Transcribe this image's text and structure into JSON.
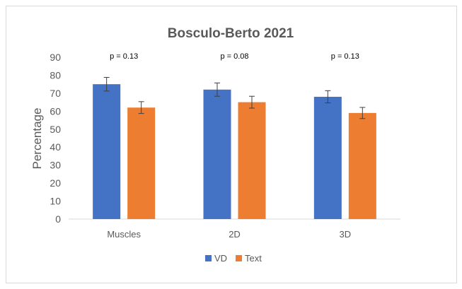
{
  "chart_data": {
    "type": "bar",
    "title": "Bosculo-Berto 2021",
    "xlabel": "",
    "ylabel": "Percentage",
    "ylim": [
      0,
      90
    ],
    "yticks": [
      0,
      10,
      20,
      30,
      40,
      50,
      60,
      70,
      80,
      90
    ],
    "categories": [
      "Muscles",
      "2D",
      "3D"
    ],
    "series": [
      {
        "name": "VD",
        "color": "#4472C4",
        "values": [
          75,
          72,
          68
        ],
        "errors": [
          3.8,
          3.7,
          3.4
        ]
      },
      {
        "name": "Text",
        "color": "#ED7D31",
        "values": [
          62,
          65,
          59
        ],
        "errors": [
          3.3,
          3.3,
          3.1
        ]
      }
    ],
    "annotations": [
      "p = 0.13",
      "p = 0.08",
      "p = 0.13"
    ],
    "grid": false,
    "legend": "bottom"
  }
}
